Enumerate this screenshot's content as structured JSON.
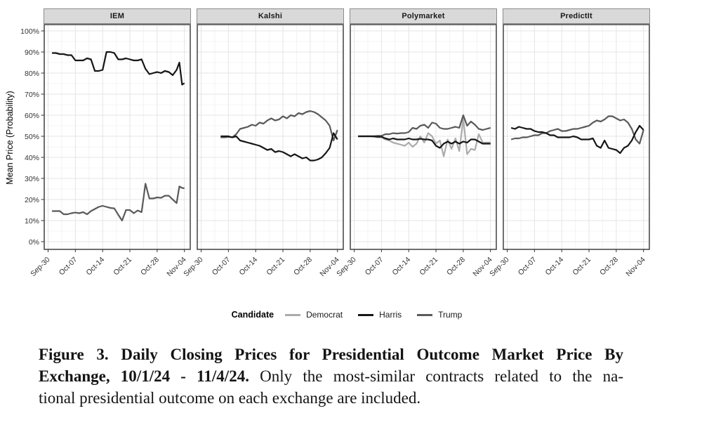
{
  "figure": {
    "y_axis_title": "Mean Price (Probability)",
    "legend": {
      "title": "Candidate",
      "items": [
        {
          "label": "Democrat",
          "color": "#ababab"
        },
        {
          "label": "Harris",
          "color": "#161616"
        },
        {
          "label": "Trump",
          "color": "#5a5a5a"
        }
      ]
    },
    "caption": {
      "line1": "Figure 3.  Daily Closing Prices for Presidential Outcome Market Price By",
      "line2_bold": "Exchange, 10/1/24 - 11/4/24.",
      "line2_rest": " Only the most-similar contracts related to the na-",
      "line3": "tional presidential outcome on each exchange are included."
    }
  },
  "chart_data": {
    "type": "line",
    "title": "",
    "xlabel": "",
    "ylabel": "Mean Price (Probability)",
    "ylim": [
      0,
      100
    ],
    "y_tick_labels": [
      "0%",
      "10%",
      "20%",
      "30%",
      "40%",
      "50%",
      "60%",
      "70%",
      "80%",
      "90%",
      "100%"
    ],
    "y_tick_values": [
      0,
      10,
      20,
      30,
      40,
      50,
      60,
      70,
      80,
      90,
      100
    ],
    "x_tick_labels": [
      "Sep-30",
      "Oct-07",
      "Oct-14",
      "Oct-21",
      "Oct-28",
      "Nov-04"
    ],
    "x_tick_days": [
      0,
      7,
      14,
      21,
      28,
      35
    ],
    "x_minor_days": [
      3.5,
      10.5,
      17.5,
      24.5,
      31.5
    ],
    "x_domain_days": [
      -1,
      36.5
    ],
    "grid": true,
    "legend_position": "bottom",
    "series_colors": {
      "Democrat": "#ababab",
      "Harris": "#161616",
      "Trump": "#5a5a5a"
    },
    "panels": [
      {
        "name": "IEM",
        "series": [
          {
            "name": "Trump",
            "days": [
              1,
              2,
              3,
              4,
              5,
              6,
              7,
              8,
              9,
              10,
              11,
              12,
              13,
              14,
              15,
              16,
              17,
              18,
              19,
              20,
              21,
              22,
              23,
              24,
              25,
              26,
              27,
              28,
              29,
              30,
              31,
              32,
              33,
              33.7,
              34.4,
              35
            ],
            "values": [
              14.5,
              14.5,
              14.5,
              13,
              13,
              13.5,
              13.8,
              13.5,
              14,
              13,
              14.5,
              15.5,
              16.5,
              17,
              16.5,
              16,
              15.8,
              12.8,
              10,
              15,
              15,
              13.5,
              14.8,
              14,
              27.5,
              20.5,
              20.5,
              21,
              20.8,
              21.8,
              21.8,
              20,
              18.3,
              26.2,
              25.5,
              25.3
            ]
          },
          {
            "name": "Harris",
            "days": [
              1,
              2,
              3,
              4,
              5,
              6,
              7,
              8,
              9,
              10,
              11,
              12,
              13,
              14,
              15,
              16,
              17,
              18,
              19,
              20,
              21,
              22,
              23,
              24,
              25,
              26,
              27,
              28,
              29,
              30,
              31,
              32,
              33,
              33.7,
              34.4,
              35
            ],
            "values": [
              89.5,
              89.5,
              89,
              89,
              88.5,
              88.5,
              86,
              86,
              86,
              87,
              86.5,
              81,
              81,
              81.5,
              90,
              90,
              89.5,
              86.5,
              86.5,
              87,
              86.5,
              86,
              86,
              86.5,
              82,
              79.5,
              80,
              80.5,
              80,
              81,
              80.5,
              79,
              81.5,
              85,
              74.5,
              75.2
            ]
          }
        ]
      },
      {
        "name": "Kalshi",
        "series": [
          {
            "name": "Trump",
            "days": [
              5,
              6,
              7,
              8,
              9,
              10,
              11,
              12,
              13,
              14,
              15,
              16,
              17,
              18,
              19,
              20,
              21,
              22,
              23,
              24,
              25,
              26,
              27,
              28,
              29,
              30,
              31,
              32,
              33,
              34,
              35
            ],
            "values": [
              49.5,
              49.5,
              49.7,
              49.5,
              51,
              53.5,
              54,
              54.5,
              55.5,
              55,
              56.5,
              56,
              57.5,
              58.5,
              57.5,
              58,
              59.5,
              58.5,
              60,
              59.5,
              61,
              60.5,
              61.5,
              62,
              61.5,
              60.5,
              59,
              57.5,
              55,
              48,
              53
            ]
          },
          {
            "name": "Harris",
            "days": [
              5,
              6,
              7,
              8,
              9,
              10,
              11,
              12,
              13,
              14,
              15,
              16,
              17,
              18,
              19,
              20,
              21,
              22,
              23,
              24,
              25,
              26,
              27,
              28,
              29,
              30,
              31,
              32,
              33,
              34,
              35
            ],
            "values": [
              50,
              50,
              50,
              49.5,
              50,
              48,
              47.5,
              47,
              46.5,
              46,
              45.5,
              44.5,
              43.5,
              44,
              42.5,
              43,
              42.5,
              41.5,
              40.5,
              41.5,
              40.5,
              39.5,
              40,
              38.5,
              38.5,
              39,
              40,
              42,
              44.5,
              51.5,
              48.5
            ]
          }
        ]
      },
      {
        "name": "Polymarket",
        "series": [
          {
            "name": "Democrat",
            "days": [
              1,
              2,
              3,
              4,
              5,
              6,
              7,
              8,
              9,
              10,
              11,
              12,
              13,
              14,
              15,
              16,
              17,
              18,
              19,
              20,
              21,
              22,
              23,
              24,
              25,
              26,
              27,
              28,
              29,
              30,
              31,
              32,
              33,
              34,
              35
            ],
            "values": [
              50,
              50,
              50,
              50,
              49.8,
              49.5,
              49.5,
              48.5,
              48,
              47,
              46.5,
              46,
              45.5,
              47,
              45,
              46.5,
              50,
              47,
              51.5,
              50,
              46.5,
              48,
              40.5,
              48.5,
              44,
              49,
              43,
              58.5,
              41.5,
              44,
              43.5,
              51,
              47,
              47,
              47
            ]
          },
          {
            "name": "Trump",
            "days": [
              1,
              2,
              3,
              4,
              5,
              6,
              7,
              8,
              9,
              10,
              11,
              12,
              13,
              14,
              15,
              16,
              17,
              18,
              19,
              20,
              21,
              22,
              23,
              24,
              25,
              26,
              27,
              28,
              29,
              30,
              31,
              32,
              33,
              34,
              35
            ],
            "values": [
              50,
              50,
              50,
              50,
              50,
              50.2,
              50.2,
              51,
              51,
              51.5,
              51.3,
              51.5,
              51.5,
              52,
              54,
              53.5,
              55,
              55.5,
              54,
              56.5,
              56,
              54,
              53.5,
              53.5,
              54,
              54.5,
              54,
              60,
              55,
              57,
              55.5,
              53.5,
              53,
              53.5,
              54
            ]
          },
          {
            "name": "Harris",
            "days": [
              1,
              2,
              3,
              4,
              5,
              6,
              7,
              8,
              9,
              10,
              11,
              12,
              13,
              14,
              15,
              16,
              17,
              18,
              19,
              20,
              21,
              22,
              23,
              24,
              25,
              26,
              27,
              28,
              29,
              30,
              31,
              32,
              33,
              34,
              35
            ],
            "values": [
              50,
              50,
              50,
              50,
              50,
              49.8,
              49.8,
              49,
              48.5,
              49,
              48.5,
              48.5,
              48.5,
              49,
              48.5,
              48.5,
              48.8,
              48.5,
              48.5,
              48,
              45.5,
              44.5,
              46.5,
              47.5,
              46.5,
              47.5,
              46.5,
              47.5,
              47,
              48.5,
              48.5,
              47.5,
              46.5,
              46.5,
              46.5
            ]
          }
        ]
      },
      {
        "name": "PredictIt",
        "series": [
          {
            "name": "Trump",
            "days": [
              1,
              2,
              3,
              4,
              5,
              6,
              7,
              8,
              9,
              10,
              11,
              12,
              13,
              14,
              15,
              16,
              17,
              18,
              19,
              20,
              21,
              22,
              23,
              24,
              25,
              26,
              27,
              28,
              29,
              30,
              31,
              32,
              33,
              34,
              35
            ],
            "values": [
              48.5,
              49,
              49,
              49.5,
              49.5,
              50,
              50.5,
              50.5,
              51.5,
              51.5,
              52.5,
              53,
              53.5,
              52.5,
              52.5,
              53,
              53.5,
              53.5,
              54,
              54.5,
              55,
              56.5,
              57.5,
              57,
              58,
              59.5,
              59.5,
              58.5,
              57.5,
              58,
              56.5,
              53.5,
              48.5,
              46.5,
              53
            ]
          },
          {
            "name": "Harris",
            "days": [
              1,
              2,
              3,
              4,
              5,
              6,
              7,
              8,
              9,
              10,
              11,
              12,
              13,
              14,
              15,
              16,
              17,
              18,
              19,
              20,
              21,
              22,
              23,
              24,
              25,
              26,
              27,
              28,
              29,
              30,
              31,
              32,
              33,
              34,
              35
            ],
            "values": [
              54,
              53.5,
              54.5,
              54,
              53.5,
              53.5,
              52.5,
              52,
              52,
              51.5,
              50.5,
              50.5,
              49.5,
              49.5,
              49.5,
              49.5,
              50,
              49.5,
              48.5,
              48.5,
              48.5,
              49,
              45.5,
              44.5,
              48,
              44.5,
              44,
              43.5,
              42,
              44.5,
              45.5,
              48,
              52,
              55,
              53
            ]
          }
        ]
      }
    ]
  }
}
